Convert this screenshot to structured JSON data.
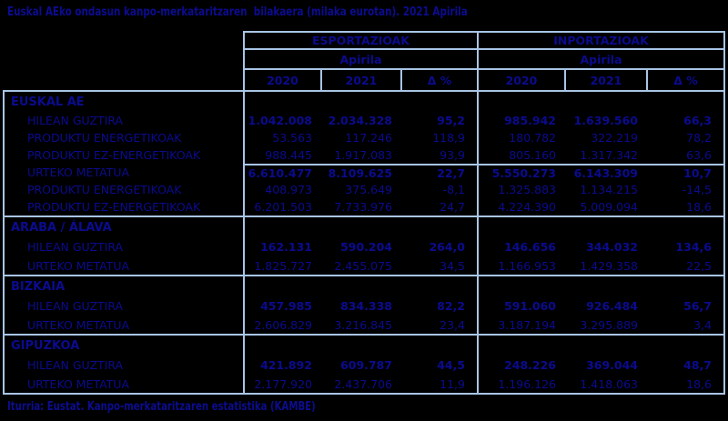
{
  "title": "Euskal AEko ondasun kanpo-merkataritzaren  bilakaera (milaka eurotan). 2021 Apirila",
  "source": "Iturria: Eustat. Kanpo-merkataritzaren estatistika (KAMBE)",
  "colors": {
    "background": "#000000",
    "text": "#0b0b8f",
    "border": "#a9c5e6"
  },
  "header": {
    "exports": "ESPORTAZIOAK",
    "imports": "INPORTAZIOAK",
    "month": "Apirila",
    "cols": [
      "2020",
      "2021",
      "Δ %"
    ]
  },
  "sections": [
    {
      "name": "EUSKAL AE",
      "rows": [
        {
          "label": "HILEAN GUZTIRA",
          "values": [
            "1.042.008",
            "2.034.328",
            "95,2",
            "985.942",
            "1.639.560",
            "66,3"
          ]
        },
        {
          "label": "PRODUKTU ENERGETIKOAK",
          "values": [
            "53.563",
            "117.246",
            "118,9",
            "180.782",
            "322.219",
            "78,2"
          ]
        },
        {
          "label": "PRODUKTU EZ-ENERGETIKOAK",
          "values": [
            "988.445",
            "1.917.083",
            "93,9",
            "805.160",
            "1.317.342",
            "63,6"
          ]
        },
        {
          "label": "URTEKO METATUA",
          "values": [
            "6.610.477",
            "8.109.625",
            "22,7",
            "5.550.273",
            "6.143.309",
            "10,7"
          ]
        },
        {
          "label": "PRODUKTU ENERGETIKOAK",
          "values": [
            "408.973",
            "375.649",
            "-8,1",
            "1.325.883",
            "1.134.215",
            "-14,5"
          ]
        },
        {
          "label": "PRODUKTU EZ-ENERGETIKOAK",
          "values": [
            "6.201.503",
            "7.733.976",
            "24,7",
            "4.224.390",
            "5.009.094",
            "18,6"
          ]
        }
      ]
    },
    {
      "name": "ARABA / ÁLAVA",
      "rows": [
        {
          "label": "HILEAN GUZTIRA",
          "values": [
            "162.131",
            "590.204",
            "264,0",
            "146.656",
            "344.032",
            "134,6"
          ]
        },
        {
          "label": "URTEKO METATUA",
          "values": [
            "1.825.727",
            "2.455.075",
            "34,5",
            "1.166.953",
            "1.429.358",
            "22,5"
          ]
        }
      ]
    },
    {
      "name": "BIZKAIA",
      "rows": [
        {
          "label": "HILEAN GUZTIRA",
          "values": [
            "457.985",
            "834.338",
            "82,2",
            "591.060",
            "926.484",
            "56,7"
          ]
        },
        {
          "label": "URTEKO METATUA",
          "values": [
            "2.606.829",
            "3.216.845",
            "23,4",
            "3.187.194",
            "3.295.889",
            "3,4"
          ]
        }
      ]
    },
    {
      "name": "GIPUZKOA",
      "rows": [
        {
          "label": "HILEAN GUZTIRA",
          "values": [
            "421.892",
            "609.787",
            "44,5",
            "248.226",
            "369.044",
            "48,7"
          ]
        },
        {
          "label": "URTEKO METATUA",
          "values": [
            "2.177.920",
            "2.437.706",
            "11,9",
            "1.196.126",
            "1.418.063",
            "18,6"
          ]
        }
      ]
    }
  ]
}
